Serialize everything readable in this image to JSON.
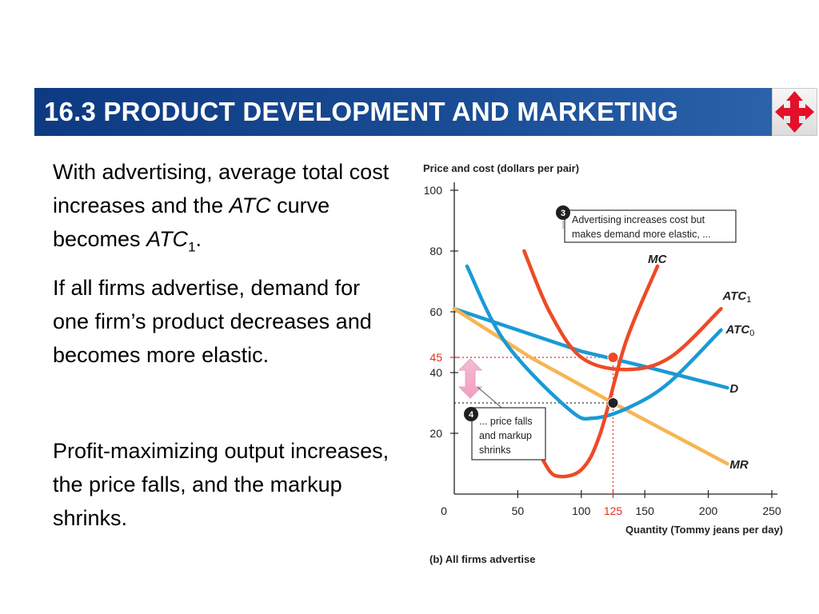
{
  "header": {
    "title": "16.3  PRODUCT DEVELOPMENT AND MARKETING",
    "nav_icon": "four-way-arrows-icon"
  },
  "text": {
    "p1_a": "With advertising, average total cost increases and the ",
    "p1_atc": "ATC",
    "p1_b": " curve becomes ",
    "p1_atc1": "ATC",
    "p1_sub": "1",
    "p1_c": ".",
    "p2": "If all firms advertise, demand for one firm’s product decreases and becomes more elastic.",
    "p3": "Profit-maximizing output increases, the price falls, and the markup shrinks."
  },
  "chart_data": {
    "type": "line",
    "ylabel": "Price and cost (dollars per pair)",
    "xlabel": "Quantity (Tommy jeans per day)",
    "caption": "(b) All firms advertise",
    "xlim": [
      0,
      250
    ],
    "ylim": [
      0,
      100
    ],
    "x_ticks": [
      0,
      50,
      100,
      150,
      200,
      250
    ],
    "y_ticks": [
      20,
      40,
      60,
      80,
      100
    ],
    "highlight_x": {
      "value": 125,
      "label": "125",
      "color": "#e0301e"
    },
    "highlight_y": {
      "value": 45,
      "label": "45",
      "color": "#e0301e"
    },
    "series": [
      {
        "name": "D",
        "color": "#1a9ad6",
        "x": [
          0,
          100,
          150,
          215
        ],
        "y": [
          61,
          47,
          42,
          35
        ]
      },
      {
        "name": "MR",
        "color": "#f7b552",
        "x": [
          0,
          60,
          125,
          215
        ],
        "y": [
          61,
          45,
          30,
          10
        ]
      },
      {
        "name": "ATC",
        "sub": "0",
        "color": "#1a9ad6",
        "x": [
          10,
          40,
          90,
          110,
          140,
          170,
          210
        ],
        "y": [
          75,
          50,
          28,
          25,
          29,
          37,
          54
        ]
      },
      {
        "name": "ATC",
        "sub": "1",
        "color": "#ee4a27",
        "x": [
          55,
          75,
          100,
          135,
          170,
          210
        ],
        "y": [
          80,
          60,
          45,
          41,
          45,
          61
        ]
      },
      {
        "name": "MC",
        "color": "#ee4a27",
        "x": [
          70,
          80,
          100,
          115,
          135,
          160
        ],
        "y": [
          11,
          6,
          8,
          20,
          50,
          75
        ]
      }
    ],
    "points": [
      {
        "name": "equilibrium-price-point",
        "x": 125,
        "y": 45,
        "color": "#ee4a27"
      },
      {
        "name": "marginal-cost-point",
        "x": 125,
        "y": 30,
        "color": "#222222"
      }
    ],
    "annotations": [
      {
        "badge": "3",
        "text": [
          "Advertising increases cost but",
          "makes demand more elastic, ..."
        ]
      },
      {
        "badge": "4",
        "text": [
          "... price falls",
          "and markup",
          "shrinks"
        ]
      }
    ]
  }
}
